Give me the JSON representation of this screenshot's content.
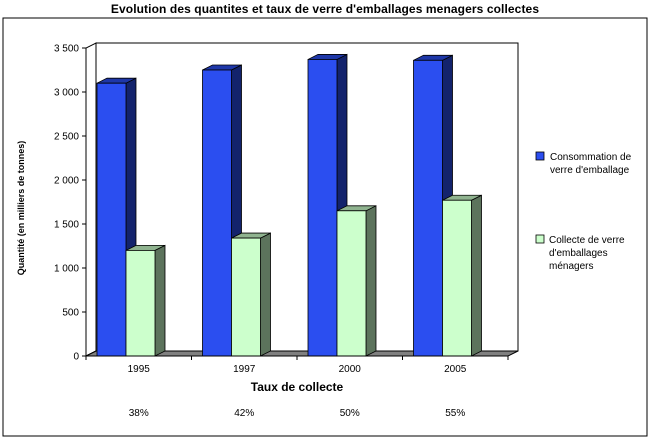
{
  "chart_data": {
    "type": "bar",
    "title": "Evolution des quantites et taux de verre d'emballages menagers collectes",
    "xlabel": "Taux de collecte",
    "ylabel": "Quantité (en milliers de tonnes)",
    "categories": [
      "1995",
      "1997",
      "2000",
      "2005"
    ],
    "rates": [
      "38%",
      "42%",
      "50%",
      "55%"
    ],
    "ylim": [
      0,
      3500
    ],
    "yticks": [
      "0",
      "500",
      "1 000",
      "1 500",
      "2 000",
      "2 500",
      "3 000",
      "3 500"
    ],
    "ytick_values": [
      0,
      500,
      1000,
      1500,
      2000,
      2500,
      3000,
      3500
    ],
    "grid": false,
    "legend_position": "right",
    "series": [
      {
        "name": "Consommation de verre d'emballage",
        "legend_lines": [
          "Consommation de",
          "verre d'emballage"
        ],
        "values": [
          3100,
          3250,
          3370,
          3360
        ],
        "color": "#2B4EF0"
      },
      {
        "name": "Collecte de verre d'emballages ménagers",
        "legend_lines": [
          "Collecte de verre",
          "d'emballages",
          "ménagers"
        ],
        "values": [
          1200,
          1340,
          1650,
          1770
        ],
        "color": "#CCFFCC"
      }
    ]
  }
}
